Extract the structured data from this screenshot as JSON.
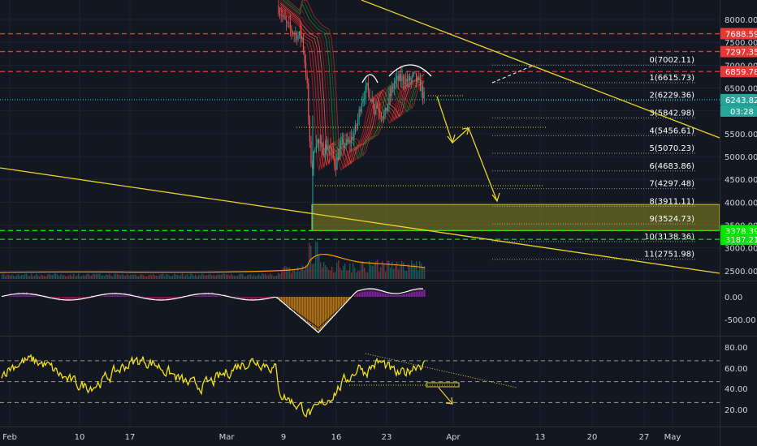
{
  "chart_data": [
    {
      "type": "candlestick",
      "panel": "price",
      "x_ticks": [
        "Feb",
        "10",
        "17",
        "Mar",
        "9",
        "16",
        "23",
        "Apr",
        "13",
        "20",
        "27",
        "May"
      ],
      "y_ticks": [
        8000,
        7500,
        7000,
        6500,
        6000,
        5500,
        5000,
        4500,
        4000,
        3500,
        3000,
        2500
      ],
      "y_tick_labels": [
        "8000.00",
        "7500.00",
        "7000.00",
        "6500.00",
        "6000.00",
        "5500.00",
        "5000.00",
        "4500.00",
        "4000.00",
        "3500.00",
        "3000.00",
        "2500.00"
      ],
      "ylim": [
        2400,
        8350
      ],
      "horizontal_levels": [
        {
          "value": 7688.59,
          "label": "7688.59",
          "color": "#e53935",
          "style": "dashed"
        },
        {
          "value": 7297.35,
          "label": "7297.35",
          "color": "#e53935",
          "style": "dashed"
        },
        {
          "value": 6859.78,
          "label": "6859.78",
          "color": "#e53935",
          "style": "dashed"
        },
        {
          "value": 6243.82,
          "label": "6243.82",
          "color": "#26a69a",
          "style": "dotted"
        },
        {
          "value": 3378.39,
          "label": "3378.39",
          "color": "#00e600",
          "style": "dashed"
        },
        {
          "value": 3187.21,
          "label": "3187.21",
          "color": "#00e600",
          "style": "dashed"
        }
      ],
      "current_price_tag": {
        "price": "6243.82",
        "timer": "03:28"
      },
      "fib_levels": [
        {
          "label": "0(7002.11)",
          "value": 7002.11
        },
        {
          "label": "1(6615.73)",
          "value": 6615.73
        },
        {
          "label": "2(6229.36)",
          "value": 6229.36
        },
        {
          "label": "3(5842.98)",
          "value": 5842.98
        },
        {
          "label": "4(5456.61)",
          "value": 5456.61
        },
        {
          "label": "5(5070.23)",
          "value": 5070.23
        },
        {
          "label": "6(4683.86)",
          "value": 4683.86
        },
        {
          "label": "7(4297.48)",
          "value": 4297.48
        },
        {
          "label": "8(3911.11)",
          "value": 3911.11
        },
        {
          "label": "9(3524.73)",
          "value": 3524.73
        },
        {
          "label": "10(3138.36)",
          "value": 3138.36
        },
        {
          "label": "11(2751.98)",
          "value": 2751.98
        }
      ],
      "support_zone": [
        3378.39,
        3950
      ]
    },
    {
      "type": "histogram",
      "panel": "oscillator",
      "y_tick_labels": [
        "0.00",
        "-500.00"
      ]
    },
    {
      "type": "line",
      "panel": "rsi",
      "y_tick_labels": [
        "80.00",
        "60.00",
        "40.00",
        "20.00"
      ],
      "bands": [
        70,
        50,
        30
      ]
    }
  ],
  "colors": {
    "background": "#131722",
    "up": "#26a69a",
    "down": "#ef5350",
    "resistance": "#e53935",
    "support": "#00e600",
    "trendline": "#e6d32a",
    "rsi": "#f3e11a"
  }
}
